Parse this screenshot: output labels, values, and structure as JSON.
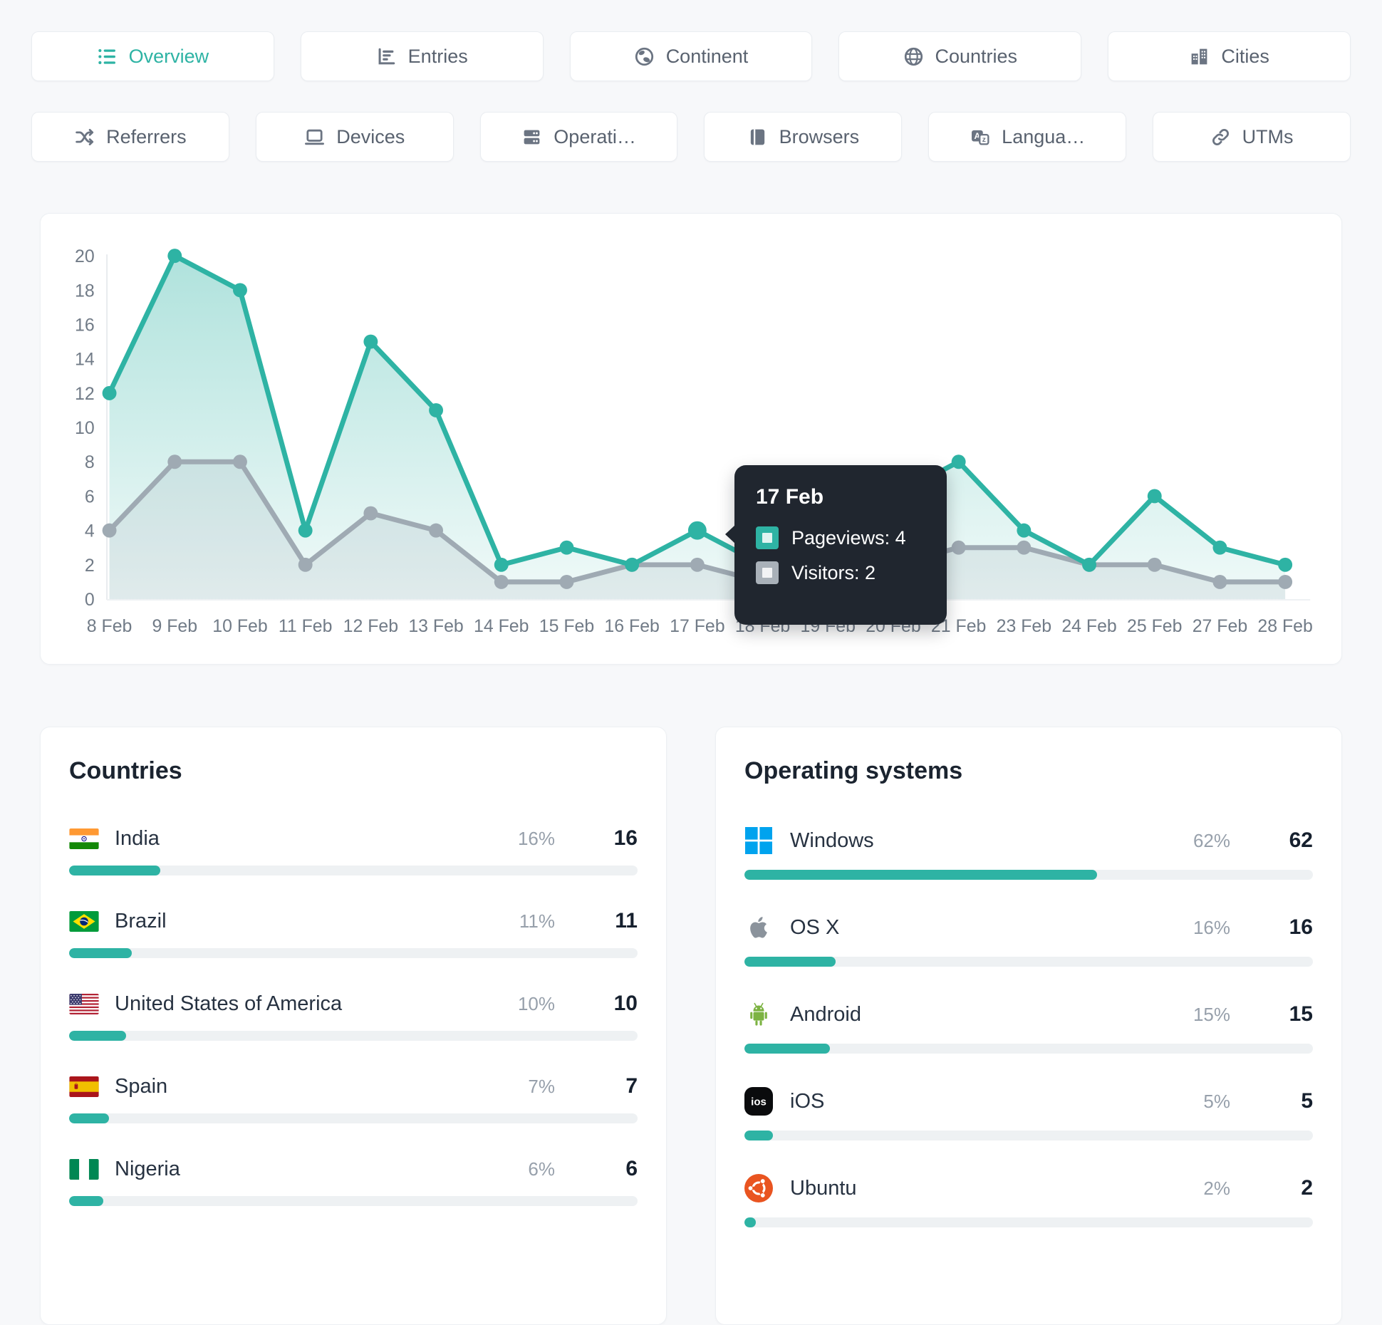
{
  "accent_color": "#2eb3a4",
  "tabs_row1": [
    {
      "label": "Overview",
      "icon": "overview",
      "active": true
    },
    {
      "label": "Entries",
      "icon": "entries",
      "active": false
    },
    {
      "label": "Continent",
      "icon": "continent",
      "active": false
    },
    {
      "label": "Countries",
      "icon": "globe",
      "active": false
    },
    {
      "label": "Cities",
      "icon": "cities",
      "active": false
    }
  ],
  "tabs_row2": [
    {
      "label": "Referrers",
      "icon": "referrers",
      "active": false
    },
    {
      "label": "Devices",
      "icon": "devices",
      "active": false
    },
    {
      "label": "Operati…",
      "icon": "os",
      "active": false
    },
    {
      "label": "Browsers",
      "icon": "browsers",
      "active": false
    },
    {
      "label": "Langua…",
      "icon": "languages",
      "active": false
    },
    {
      "label": "UTMs",
      "icon": "link",
      "active": false
    }
  ],
  "chart_data": {
    "type": "line",
    "x_labels": [
      "8 Feb",
      "9 Feb",
      "10 Feb",
      "11 Feb",
      "12 Feb",
      "13 Feb",
      "14 Feb",
      "15 Feb",
      "16 Feb",
      "17 Feb",
      "18 Feb",
      "19 Feb",
      "20 Feb",
      "21 Feb",
      "23 Feb",
      "24 Feb",
      "25 Feb",
      "27 Feb",
      "28 Feb"
    ],
    "series": [
      {
        "name": "Pageviews",
        "color": "#2eb3a4",
        "values": [
          12,
          20,
          18,
          4,
          15,
          11,
          2,
          3,
          2,
          4,
          2,
          2,
          6,
          8,
          4,
          2,
          6,
          3,
          2
        ]
      },
      {
        "name": "Visitors",
        "color": "#9faab3",
        "values": [
          4,
          8,
          8,
          2,
          5,
          4,
          1,
          1,
          2,
          2,
          1,
          1,
          2,
          3,
          3,
          2,
          2,
          1,
          1
        ]
      }
    ],
    "ylim": [
      0,
      20
    ],
    "ytick_step": 2,
    "grid": false,
    "legend_position": "none",
    "highlighted_x": "17 Feb"
  },
  "tooltip": {
    "date": "17 Feb",
    "rows": [
      {
        "label": "Pageviews",
        "value": "4",
        "color": "#2eb3a4"
      },
      {
        "label": "Visitors",
        "value": "2",
        "color": "#a9b1b9"
      }
    ]
  },
  "panels": [
    {
      "title": "Countries",
      "items": [
        {
          "icon": "flag-india",
          "name": "India",
          "percent": "16%",
          "count": "16",
          "bar_pct": 16
        },
        {
          "icon": "flag-brazil",
          "name": "Brazil",
          "percent": "11%",
          "count": "11",
          "bar_pct": 11
        },
        {
          "icon": "flag-usa",
          "name": "United States of America",
          "percent": "10%",
          "count": "10",
          "bar_pct": 10
        },
        {
          "icon": "flag-spain",
          "name": "Spain",
          "percent": "7%",
          "count": "7",
          "bar_pct": 7
        },
        {
          "icon": "flag-nigeria",
          "name": "Nigeria",
          "percent": "6%",
          "count": "6",
          "bar_pct": 6
        }
      ]
    },
    {
      "title": "Operating systems",
      "items": [
        {
          "icon": "os-windows",
          "name": "Windows",
          "percent": "62%",
          "count": "62",
          "bar_pct": 62
        },
        {
          "icon": "os-osx",
          "name": "OS X",
          "percent": "16%",
          "count": "16",
          "bar_pct": 16
        },
        {
          "icon": "os-android",
          "name": "Android",
          "percent": "15%",
          "count": "15",
          "bar_pct": 15
        },
        {
          "icon": "os-ios",
          "name": "iOS",
          "percent": "5%",
          "count": "5",
          "bar_pct": 5
        },
        {
          "icon": "os-ubuntu",
          "name": "Ubuntu",
          "percent": "2%",
          "count": "2",
          "bar_pct": 2
        }
      ]
    }
  ]
}
